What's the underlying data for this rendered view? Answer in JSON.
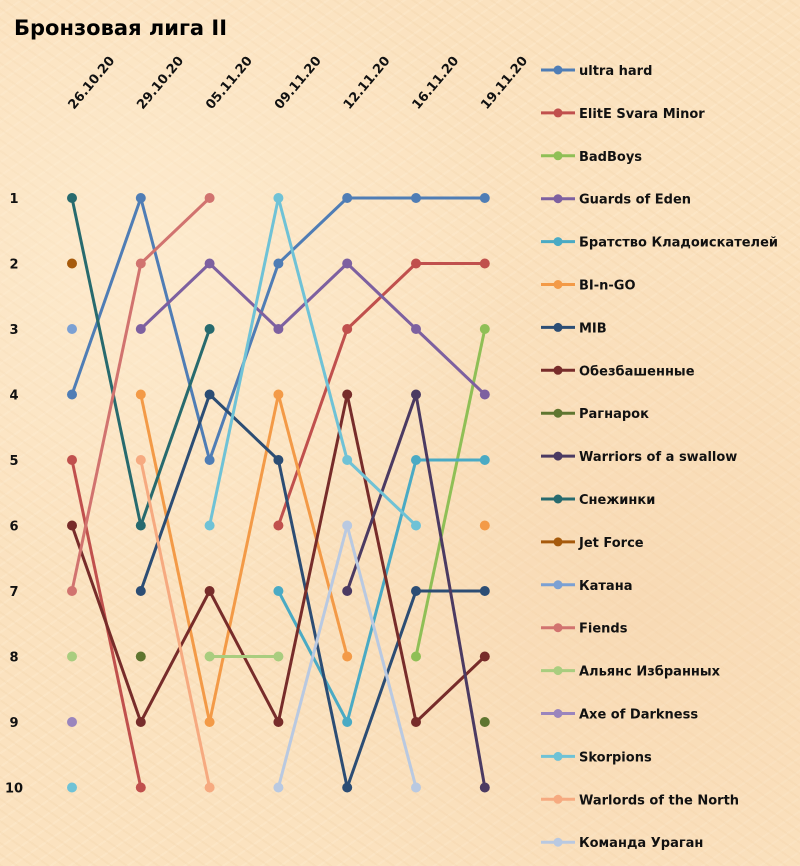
{
  "chart_data": {
    "type": "line",
    "title": "Бронзовая лига II",
    "x": [
      "26.10.20",
      "29.10.20",
      "05.11.20",
      "09.11.20",
      "12.11.20",
      "16.11.20",
      "19.11.20"
    ],
    "y_ticks": [
      "1",
      "2",
      "3",
      "4",
      "5",
      "6",
      "7",
      "8",
      "9",
      "10"
    ],
    "ylim": [
      1,
      10
    ],
    "y_inverted": true,
    "xlabel": "",
    "ylabel": "",
    "legend_position": "right",
    "grid": false,
    "series": [
      {
        "name": "ultra hard",
        "color": "#4f7db5",
        "values": [
          4,
          1,
          5,
          2,
          1,
          1,
          1
        ]
      },
      {
        "name": "ElitE Svara Minor",
        "color": "#c0504d",
        "values": [
          5,
          10,
          null,
          6,
          3,
          2,
          2
        ]
      },
      {
        "name": "BadBoys",
        "color": "#8fbf56",
        "values": [
          null,
          null,
          null,
          null,
          null,
          8,
          3
        ]
      },
      {
        "name": "Guards of Eden",
        "color": "#7d60a0",
        "values": [
          null,
          3,
          2,
          3,
          2,
          3,
          4
        ]
      },
      {
        "name": "Братство Кладоискателей",
        "color": "#4aaac4",
        "values": [
          null,
          null,
          null,
          7,
          9,
          5,
          5
        ]
      },
      {
        "name": "BI-n-GO",
        "color": "#f39a47",
        "values": [
          null,
          4,
          9,
          4,
          8,
          null,
          6
        ]
      },
      {
        "name": "MIB",
        "color": "#2c4d74",
        "values": [
          null,
          7,
          4,
          5,
          10,
          7,
          7
        ]
      },
      {
        "name": "Обезбашенные",
        "color": "#772c2a",
        "values": [
          6,
          9,
          7,
          9,
          4,
          9,
          8
        ]
      },
      {
        "name": "Рагнарок",
        "color": "#5f7530",
        "values": [
          null,
          8,
          null,
          null,
          null,
          null,
          9
        ]
      },
      {
        "name": "Warriors of a swallow",
        "color": "#4b3a62",
        "values": [
          null,
          null,
          null,
          null,
          7,
          4,
          10
        ]
      },
      {
        "name": "Снежинки",
        "color": "#276a6e",
        "values": [
          1,
          6,
          3,
          null,
          null,
          null,
          null
        ]
      },
      {
        "name": "Jet Force",
        "color": "#a65a0c",
        "values": [
          2,
          null,
          null,
          null,
          null,
          null,
          null
        ]
      },
      {
        "name": "Катана",
        "color": "#7ba0d3",
        "values": [
          3,
          null,
          null,
          null,
          null,
          null,
          null
        ]
      },
      {
        "name": "Fiends",
        "color": "#d1736f",
        "values": [
          7,
          2,
          1,
          null,
          null,
          null,
          null
        ]
      },
      {
        "name": "Альянс Избранных",
        "color": "#a9cd7f",
        "values": [
          8,
          null,
          8,
          8,
          null,
          null,
          null
        ]
      },
      {
        "name": "Axe of Darkness",
        "color": "#9a85bd",
        "values": [
          9,
          null,
          null,
          null,
          null,
          null,
          null
        ]
      },
      {
        "name": "Skorpions",
        "color": "#6fc2d6",
        "values": [
          10,
          null,
          6,
          1,
          5,
          6,
          null
        ]
      },
      {
        "name": "Warlords of the North",
        "color": "#f6aa80",
        "values": [
          null,
          5,
          10,
          null,
          null,
          null,
          null
        ]
      },
      {
        "name": "Команда Ураган",
        "color": "#b9c9e1",
        "values": [
          null,
          null,
          null,
          10,
          6,
          10,
          null
        ]
      }
    ]
  }
}
